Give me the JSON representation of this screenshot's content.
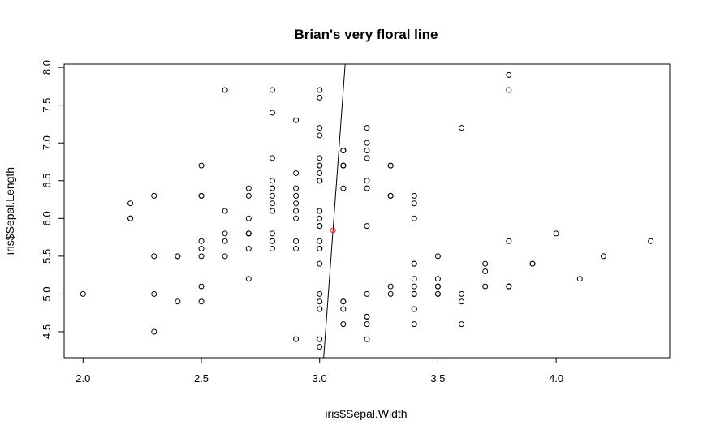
{
  "chart_data": {
    "type": "scatter",
    "title": "Brian's very floral line",
    "xlabel": "iris$Sepal.Width",
    "ylabel": "iris$Sepal.Length",
    "xlim": [
      1.92,
      4.48
    ],
    "ylim": [
      4.156,
      8.044
    ],
    "x_ticks": [
      "2.0",
      "2.5",
      "3.0",
      "3.5",
      "4.0"
    ],
    "y_ticks": [
      "4.5",
      "5.0",
      "5.5",
      "6.0",
      "6.5",
      "7.0",
      "7.5",
      "8.0"
    ],
    "grid": false,
    "points": [
      [
        3.5,
        5.1
      ],
      [
        3.0,
        4.9
      ],
      [
        3.2,
        4.7
      ],
      [
        3.1,
        4.6
      ],
      [
        3.6,
        5.0
      ],
      [
        3.9,
        5.4
      ],
      [
        3.4,
        4.6
      ],
      [
        3.4,
        5.0
      ],
      [
        2.9,
        4.4
      ],
      [
        3.1,
        4.9
      ],
      [
        3.7,
        5.4
      ],
      [
        3.4,
        4.8
      ],
      [
        3.0,
        4.8
      ],
      [
        3.0,
        4.3
      ],
      [
        4.0,
        5.8
      ],
      [
        4.4,
        5.7
      ],
      [
        3.9,
        5.4
      ],
      [
        3.5,
        5.1
      ],
      [
        3.8,
        5.7
      ],
      [
        3.8,
        5.1
      ],
      [
        3.4,
        5.4
      ],
      [
        3.7,
        5.1
      ],
      [
        3.6,
        4.6
      ],
      [
        3.3,
        5.1
      ],
      [
        3.4,
        4.8
      ],
      [
        3.0,
        5.0
      ],
      [
        3.4,
        5.0
      ],
      [
        3.5,
        5.2
      ],
      [
        3.4,
        5.2
      ],
      [
        3.2,
        4.7
      ],
      [
        3.1,
        4.8
      ],
      [
        3.4,
        5.4
      ],
      [
        4.1,
        5.2
      ],
      [
        4.2,
        5.5
      ],
      [
        3.1,
        4.9
      ],
      [
        3.2,
        5.0
      ],
      [
        3.5,
        5.5
      ],
      [
        3.6,
        4.9
      ],
      [
        3.0,
        4.4
      ],
      [
        3.4,
        5.1
      ],
      [
        3.5,
        5.0
      ],
      [
        2.3,
        4.5
      ],
      [
        3.2,
        4.4
      ],
      [
        3.5,
        5.0
      ],
      [
        3.8,
        5.1
      ],
      [
        3.0,
        4.8
      ],
      [
        3.8,
        5.1
      ],
      [
        3.2,
        4.6
      ],
      [
        3.7,
        5.3
      ],
      [
        3.3,
        5.0
      ],
      [
        3.2,
        7.0
      ],
      [
        3.2,
        6.4
      ],
      [
        3.1,
        6.9
      ],
      [
        2.3,
        5.5
      ],
      [
        2.8,
        6.5
      ],
      [
        2.8,
        5.7
      ],
      [
        3.3,
        6.3
      ],
      [
        2.4,
        4.9
      ],
      [
        2.9,
        6.6
      ],
      [
        2.7,
        5.2
      ],
      [
        2.0,
        5.0
      ],
      [
        3.0,
        5.9
      ],
      [
        2.2,
        6.0
      ],
      [
        2.9,
        6.1
      ],
      [
        2.9,
        5.6
      ],
      [
        3.1,
        6.7
      ],
      [
        3.0,
        5.6
      ],
      [
        2.7,
        5.8
      ],
      [
        2.2,
        6.2
      ],
      [
        2.5,
        5.6
      ],
      [
        3.2,
        5.9
      ],
      [
        2.8,
        6.1
      ],
      [
        2.5,
        6.3
      ],
      [
        2.8,
        6.1
      ],
      [
        2.9,
        6.4
      ],
      [
        3.0,
        6.6
      ],
      [
        2.8,
        6.8
      ],
      [
        3.0,
        6.7
      ],
      [
        2.9,
        6.0
      ],
      [
        2.6,
        5.7
      ],
      [
        2.4,
        5.5
      ],
      [
        2.4,
        5.5
      ],
      [
        2.7,
        5.8
      ],
      [
        2.7,
        6.0
      ],
      [
        3.0,
        5.4
      ],
      [
        3.4,
        6.0
      ],
      [
        3.1,
        6.7
      ],
      [
        2.3,
        6.3
      ],
      [
        3.0,
        5.6
      ],
      [
        2.5,
        5.5
      ],
      [
        2.6,
        5.5
      ],
      [
        3.0,
        6.1
      ],
      [
        2.6,
        5.8
      ],
      [
        2.3,
        5.0
      ],
      [
        2.7,
        5.6
      ],
      [
        3.0,
        5.7
      ],
      [
        2.9,
        5.7
      ],
      [
        2.9,
        6.2
      ],
      [
        2.5,
        5.1
      ],
      [
        2.8,
        5.7
      ],
      [
        3.3,
        6.3
      ],
      [
        2.7,
        5.8
      ],
      [
        3.0,
        7.1
      ],
      [
        2.9,
        6.3
      ],
      [
        3.0,
        6.5
      ],
      [
        3.0,
        7.6
      ],
      [
        2.5,
        4.9
      ],
      [
        2.9,
        7.3
      ],
      [
        2.5,
        6.7
      ],
      [
        3.6,
        7.2
      ],
      [
        3.2,
        6.5
      ],
      [
        2.7,
        6.4
      ],
      [
        3.0,
        6.8
      ],
      [
        2.5,
        5.7
      ],
      [
        2.8,
        5.8
      ],
      [
        3.2,
        6.4
      ],
      [
        3.0,
        6.5
      ],
      [
        3.8,
        7.7
      ],
      [
        2.6,
        7.7
      ],
      [
        2.2,
        6.0
      ],
      [
        3.2,
        6.9
      ],
      [
        2.8,
        5.6
      ],
      [
        2.8,
        7.7
      ],
      [
        2.7,
        6.3
      ],
      [
        3.3,
        6.7
      ],
      [
        3.2,
        7.2
      ],
      [
        2.8,
        6.2
      ],
      [
        3.0,
        6.1
      ],
      [
        2.8,
        6.4
      ],
      [
        3.0,
        7.2
      ],
      [
        2.8,
        7.4
      ],
      [
        3.8,
        7.9
      ],
      [
        2.8,
        6.4
      ],
      [
        2.8,
        6.3
      ],
      [
        2.6,
        6.1
      ],
      [
        3.0,
        7.7
      ],
      [
        3.4,
        6.3
      ],
      [
        3.1,
        6.4
      ],
      [
        3.0,
        6.0
      ],
      [
        3.1,
        6.9
      ],
      [
        3.1,
        6.7
      ],
      [
        3.1,
        6.9
      ],
      [
        2.7,
        5.8
      ],
      [
        3.2,
        6.8
      ],
      [
        3.3,
        6.7
      ],
      [
        3.0,
        6.7
      ],
      [
        2.5,
        6.3
      ],
      [
        3.0,
        6.5
      ],
      [
        3.4,
        6.2
      ],
      [
        3.0,
        5.9
      ]
    ],
    "mean_point": [
      3.057,
      5.843
    ],
    "line": [
      [
        3.017,
        4.156
      ],
      [
        3.108,
        8.044
      ]
    ]
  }
}
